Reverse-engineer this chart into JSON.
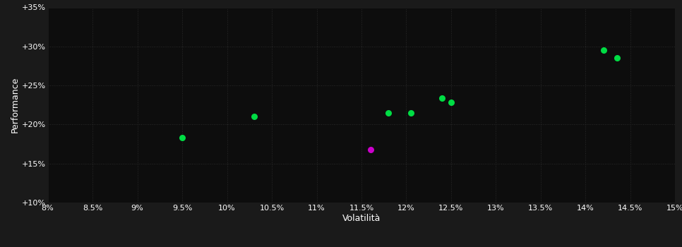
{
  "background_color": "#1a1a1a",
  "plot_bg_color": "#0d0d0d",
  "grid_color": "#2a2a2a",
  "text_color": "#ffffff",
  "xlabel": "Volatilità",
  "ylabel": "Performance",
  "xlim": [
    0.08,
    0.15
  ],
  "ylim": [
    0.1,
    0.35
  ],
  "xticks": [
    0.08,
    0.085,
    0.09,
    0.095,
    0.1,
    0.105,
    0.11,
    0.115,
    0.12,
    0.125,
    0.13,
    0.135,
    0.14,
    0.145,
    0.15
  ],
  "yticks": [
    0.1,
    0.15,
    0.2,
    0.25,
    0.3,
    0.35
  ],
  "xtick_labels": [
    "8%",
    "8.5%",
    "9%",
    "9.5%",
    "10%",
    "10.5%",
    "11%",
    "11.5%",
    "12%",
    "12.5%",
    "13%",
    "13.5%",
    "14%",
    "14.5%",
    "15%"
  ],
  "ytick_labels": [
    "+10%",
    "+15%",
    "+20%",
    "+25%",
    "+30%",
    "+35%"
  ],
  "green_points": [
    [
      0.095,
      0.183
    ],
    [
      0.103,
      0.21
    ],
    [
      0.118,
      0.215
    ],
    [
      0.1205,
      0.215
    ],
    [
      0.124,
      0.234
    ],
    [
      0.125,
      0.228
    ],
    [
      0.142,
      0.295
    ],
    [
      0.1435,
      0.285
    ]
  ],
  "magenta_points": [
    [
      0.116,
      0.168
    ]
  ],
  "green_color": "#00dd44",
  "magenta_color": "#cc00cc",
  "marker_size": 30,
  "font_size_ticks": 8,
  "font_size_labels": 9
}
